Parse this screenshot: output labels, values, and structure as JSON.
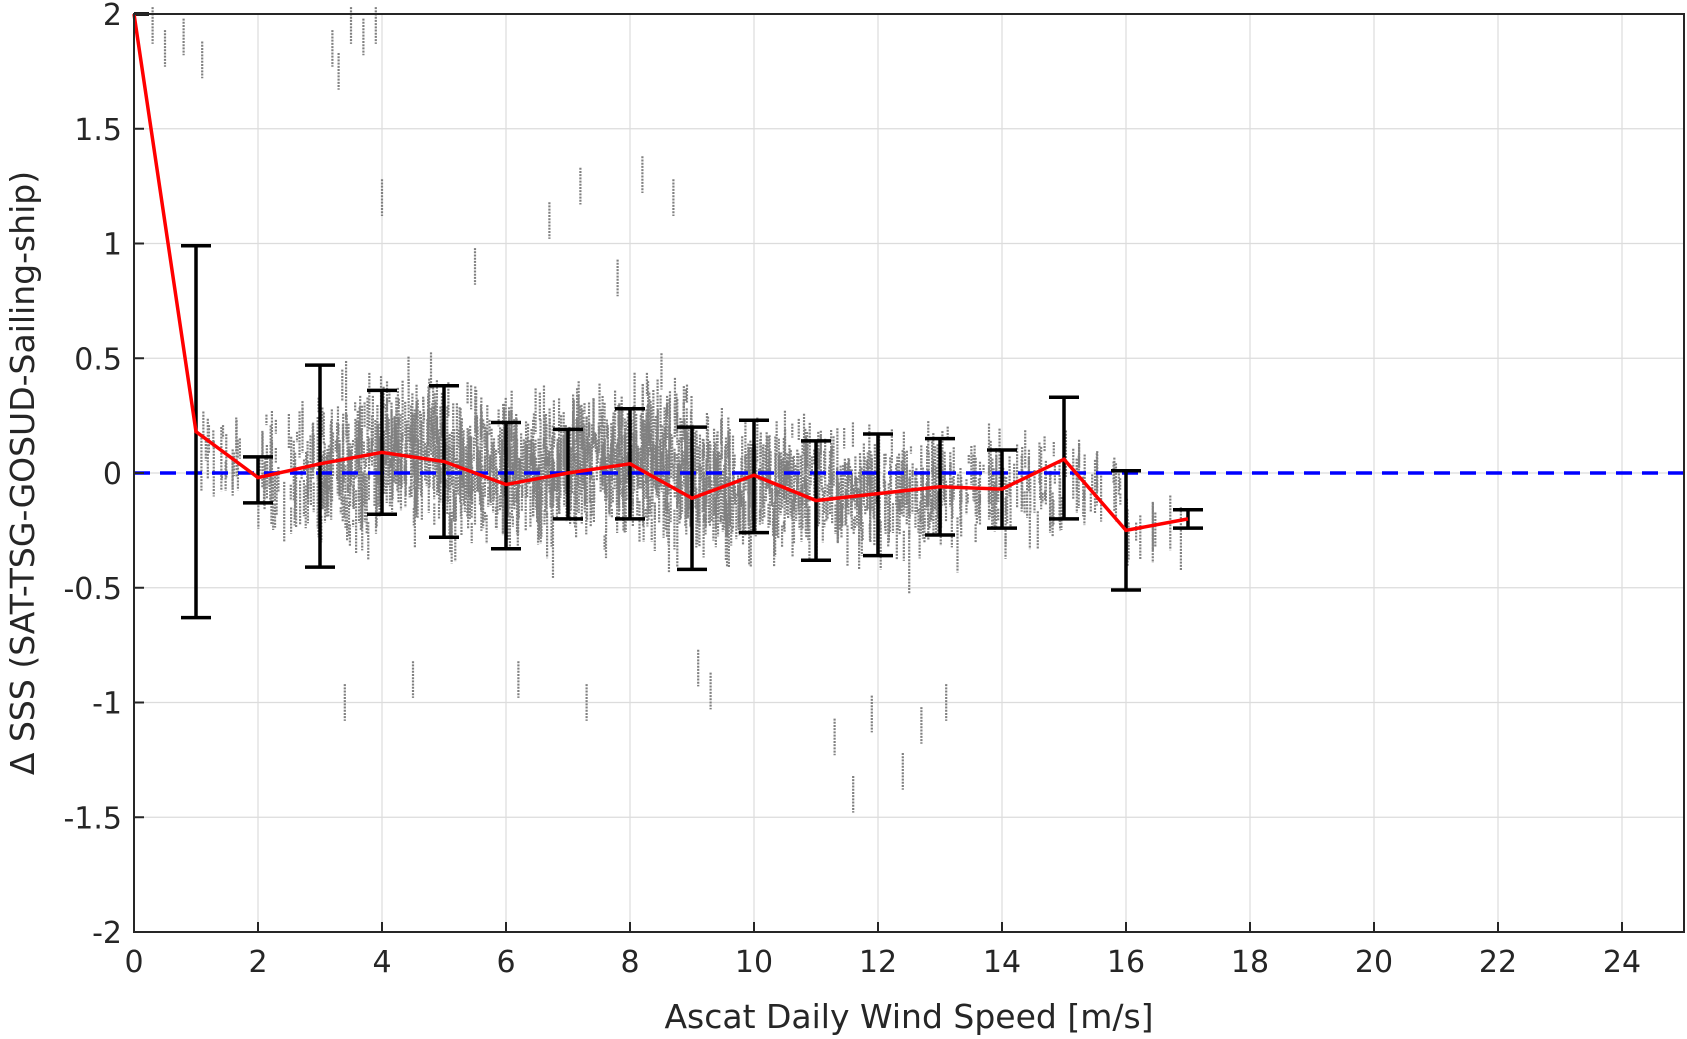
{
  "chart_data": {
    "type": "scatter",
    "title": "",
    "xlabel": "Ascat Daily Wind Speed [m/s]",
    "ylabel": "Δ SSS (SAT-TSG-GOSUD-Sailing-ship)",
    "xlim": [
      0,
      25
    ],
    "ylim": [
      -2,
      2
    ],
    "x_ticks": [
      "0",
      "2",
      "4",
      "6",
      "8",
      "10",
      "12",
      "14",
      "16",
      "18",
      "20",
      "22",
      "24"
    ],
    "y_ticks": [
      "2",
      "1.5",
      "1",
      "0.5",
      "0",
      "-0.5",
      "-1",
      "-1.5",
      "-2"
    ],
    "grid": true,
    "colors": {
      "scatter": "#808080",
      "bin_mean": "#ff0000",
      "zero_line": "#0000ff",
      "error_bars": "#000000"
    },
    "zero_line": {
      "y": 0,
      "style": "dashed"
    },
    "series": [
      {
        "type": "line",
        "x": [
          0,
          1,
          2,
          3,
          4,
          5,
          6,
          7,
          8,
          9,
          10,
          11,
          12,
          13,
          14,
          15,
          16,
          17
        ],
        "y": [
          2.05,
          0.18,
          -0.02,
          0.04,
          0.09,
          0.05,
          -0.05,
          0.0,
          0.04,
          -0.11,
          -0.01,
          -0.12,
          -0.09,
          -0.06,
          -0.07,
          0.06,
          -0.25,
          -0.2
        ]
      },
      {
        "type": "errorbar",
        "x": [
          0,
          1,
          2,
          3,
          4,
          5,
          6,
          7,
          8,
          9,
          10,
          11,
          12,
          13,
          14,
          15,
          16,
          17
        ],
        "lower": [
          2.0,
          -0.63,
          -0.13,
          -0.41,
          -0.18,
          -0.28,
          -0.33,
          -0.2,
          -0.2,
          -0.42,
          -0.26,
          -0.38,
          -0.36,
          -0.27,
          -0.24,
          -0.2,
          -0.51,
          -0.24
        ],
        "upper": [
          2.0,
          0.99,
          0.07,
          0.47,
          0.36,
          0.38,
          0.22,
          0.19,
          0.28,
          0.2,
          0.23,
          0.14,
          0.17,
          0.15,
          0.1,
          0.33,
          0.01,
          -0.16
        ]
      },
      {
        "type": "scatter-density",
        "bins_x": [
          1.5,
          2.5,
          3.5,
          4.5,
          5.5,
          6.5,
          7.5,
          8.5,
          9.5,
          10.5,
          11.5,
          12.5,
          13.5,
          14.5,
          15.5,
          16.5
        ],
        "center": [
          0.05,
          0.0,
          0.05,
          0.08,
          0.03,
          0.02,
          0.05,
          0.05,
          -0.05,
          -0.05,
          -0.08,
          -0.1,
          -0.08,
          -0.08,
          -0.05,
          -0.25
        ],
        "spread": [
          0.12,
          0.18,
          0.2,
          0.18,
          0.18,
          0.17,
          0.16,
          0.2,
          0.16,
          0.15,
          0.15,
          0.14,
          0.13,
          0.14,
          0.1,
          0.05
        ],
        "density": [
          20,
          60,
          140,
          160,
          150,
          170,
          190,
          200,
          160,
          130,
          110,
          90,
          60,
          40,
          25,
          10
        ]
      },
      {
        "type": "scatter-outliers",
        "x": [
          0.3,
          0.5,
          0.8,
          1.1,
          3.2,
          3.3,
          3.5,
          3.7,
          3.9,
          5.5,
          6.7,
          7.2,
          7.8,
          8.2,
          8.7,
          9.1,
          9.3,
          11.3,
          11.6,
          11.9,
          12.4,
          12.7,
          13.1,
          3.4,
          4.5,
          4.0,
          7.3,
          6.2
        ],
        "y": [
          1.95,
          1.85,
          1.9,
          1.8,
          1.85,
          1.75,
          1.95,
          1.9,
          1.95,
          0.9,
          1.1,
          1.25,
          0.85,
          1.3,
          1.2,
          -0.85,
          -0.95,
          -1.15,
          -1.4,
          -1.05,
          -1.3,
          -1.1,
          -1.0,
          -1.0,
          -0.9,
          1.2,
          -1.0,
          -0.9
        ]
      }
    ]
  }
}
